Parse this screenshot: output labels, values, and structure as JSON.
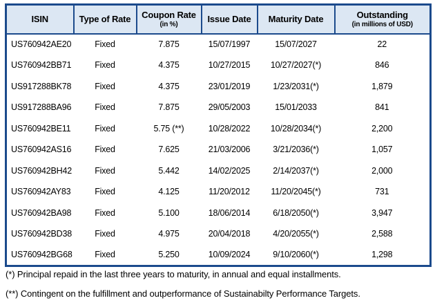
{
  "colors": {
    "border_blue": "#1b4a8c",
    "header_fill": "#dce7f3",
    "text": "#000000"
  },
  "table": {
    "columns": [
      {
        "label": "ISIN",
        "sub": ""
      },
      {
        "label": "Type of Rate",
        "sub": ""
      },
      {
        "label": "Coupon Rate",
        "sub": "(in %)"
      },
      {
        "label": "Issue Date",
        "sub": ""
      },
      {
        "label": "Maturity Date",
        "sub": ""
      },
      {
        "label": "Outstanding",
        "sub": "(in millions of USD)"
      }
    ],
    "rows": [
      [
        "US760942AE20",
        "Fixed",
        "7.875",
        "15/07/1997",
        "15/07/2027",
        "22"
      ],
      [
        "US760942BB71",
        "Fixed",
        "4.375",
        "10/27/2015",
        "10/27/2027(*)",
        "846"
      ],
      [
        "US917288BK78",
        "Fixed",
        "4.375",
        "23/01/2019",
        "1/23/2031(*)",
        "1,879"
      ],
      [
        "US917288BA96",
        "Fixed",
        "7.875",
        "29/05/2003",
        "15/01/2033",
        "841"
      ],
      [
        "US760942BE11",
        "Fixed",
        "5.75 (**)",
        "10/28/2022",
        "10/28/2034(*)",
        "2,200"
      ],
      [
        "US760942AS16",
        "Fixed",
        "7.625",
        "21/03/2006",
        "3/21/2036(*)",
        "1,057"
      ],
      [
        "US760942BH42",
        "Fixed",
        "5.442",
        "14/02/2025",
        "2/14/2037(*)",
        "2,000"
      ],
      [
        "US760942AY83",
        "Fixed",
        "4.125",
        "11/20/2012",
        "11/20/2045(*)",
        "731"
      ],
      [
        "US760942BA98",
        "Fixed",
        "5.100",
        "18/06/2014",
        "6/18/2050(*)",
        "3,947"
      ],
      [
        "US760942BD38",
        "Fixed",
        "4.975",
        "20/04/2018",
        "4/20/2055(*)",
        "2,588"
      ],
      [
        "US760942BG68",
        "Fixed",
        "5.250",
        "10/09/2024",
        "9/10/2060(*)",
        "1,298"
      ]
    ]
  },
  "footnotes": [
    "(*) Principal repaid in the last three years to maturity, in annual and equal installments.",
    "(**) Contingent on the fulfillment and outperformance of Sustainabilty Performance Targets."
  ]
}
